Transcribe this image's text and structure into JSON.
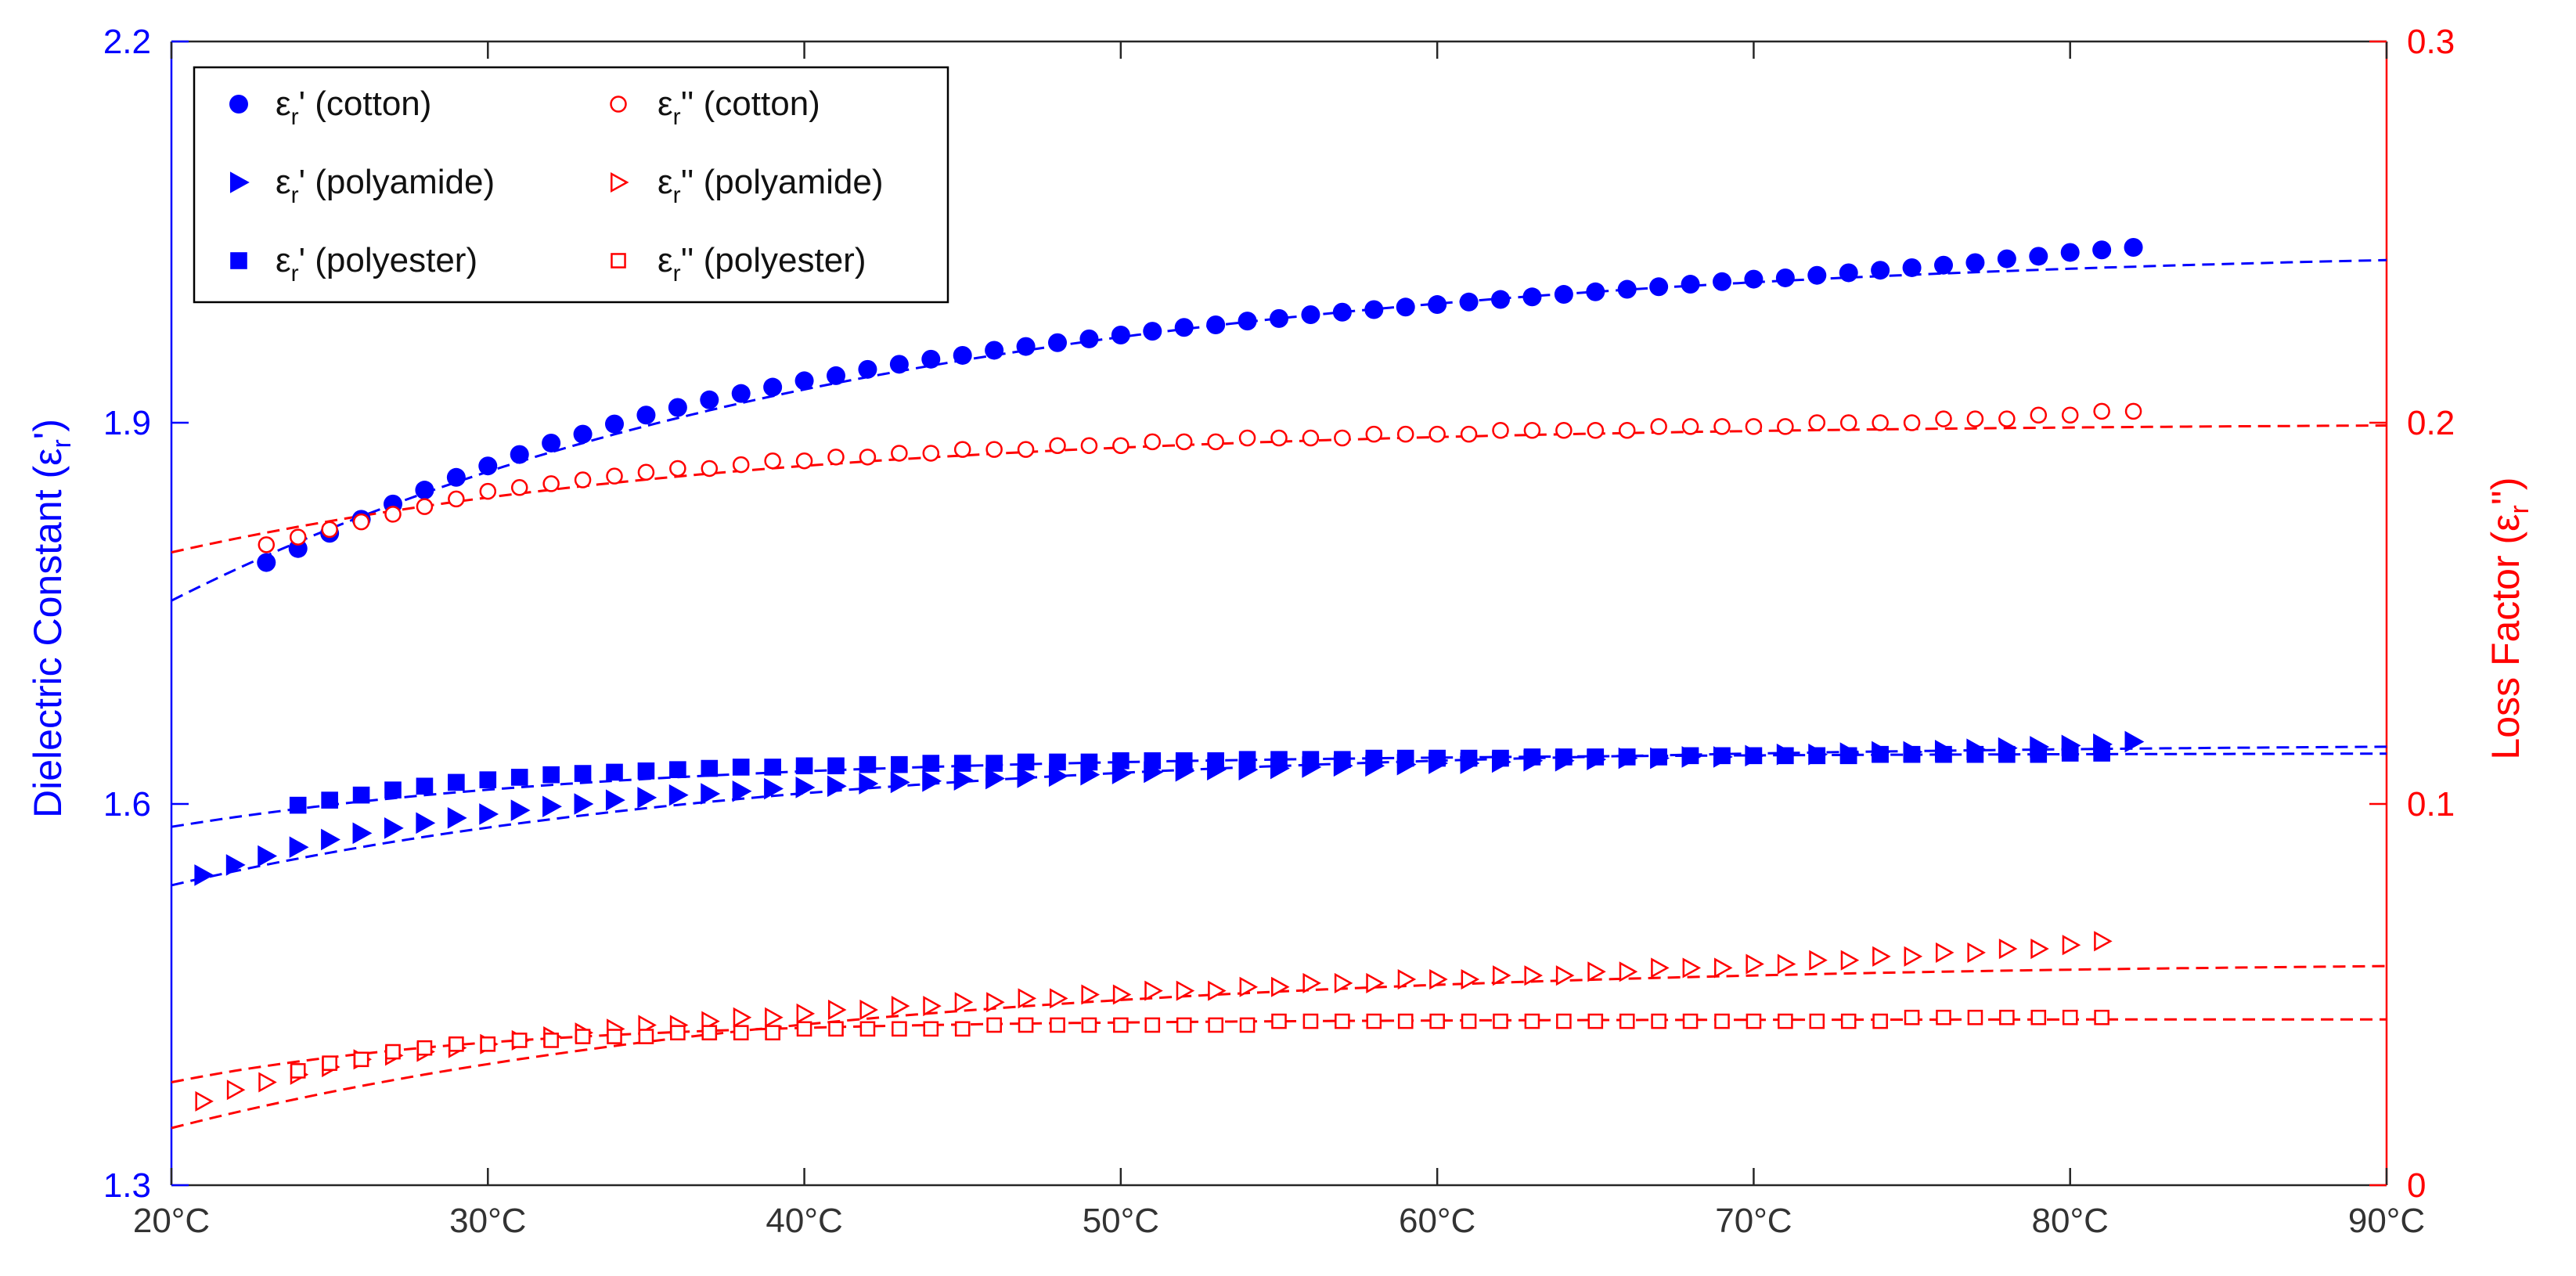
{
  "chart_data": {
    "type": "scatter",
    "title": "",
    "xlabel": "",
    "x_tick_labels": [
      "20°C",
      "30°C",
      "40°C",
      "50°C",
      "60°C",
      "70°C",
      "80°C",
      "90°C"
    ],
    "xlim": [
      20,
      90
    ],
    "left_axis": {
      "label_main": "Dielectric Constant (ε",
      "label_sub": "r",
      "label_end": "')",
      "ylim": [
        1.3,
        2.2
      ],
      "ticks": [
        "1.3",
        "1.6",
        "1.9",
        "2.2"
      ],
      "color": "#0000ff"
    },
    "right_axis": {
      "label_main": "Loss Factor (ε",
      "label_sub": "r",
      "label_end": "'')",
      "ylim": [
        0,
        0.3
      ],
      "ticks": [
        "0",
        "0.1",
        "0.2",
        "0.3"
      ],
      "color": "#ff0000"
    },
    "series": [
      {
        "name": "εr' (cotton)",
        "legend_main": "ε",
        "legend_sub": "r",
        "legend_rest": "' (cotton)",
        "axis": "left",
        "marker": "circle",
        "filled": true,
        "color": "#0000ff",
        "x": [
          23,
          24,
          25,
          26,
          27,
          28,
          29,
          30,
          31,
          32,
          33,
          34,
          35,
          36,
          37,
          38,
          39,
          40,
          41,
          42,
          43,
          44,
          45,
          46,
          47,
          48,
          49,
          50,
          51,
          52,
          53,
          54,
          55,
          56,
          57,
          58,
          59,
          60,
          61,
          62,
          63,
          64,
          65,
          66,
          67,
          68,
          69,
          70,
          71,
          72,
          73,
          74,
          75,
          76,
          77,
          78,
          79,
          80,
          81,
          82
        ],
        "values": [
          1.79,
          1.801,
          1.813,
          1.824,
          1.836,
          1.847,
          1.857,
          1.866,
          1.875,
          1.884,
          1.891,
          1.899,
          1.906,
          1.912,
          1.918,
          1.923,
          1.928,
          1.933,
          1.937,
          1.942,
          1.946,
          1.95,
          1.953,
          1.957,
          1.96,
          1.963,
          1.966,
          1.969,
          1.972,
          1.975,
          1.977,
          1.98,
          1.982,
          1.985,
          1.987,
          1.989,
          1.991,
          1.993,
          1.995,
          1.997,
          1.999,
          2.001,
          2.003,
          2.005,
          2.007,
          2.009,
          2.011,
          2.013,
          2.014,
          2.016,
          2.018,
          2.02,
          2.022,
          2.024,
          2.026,
          2.029,
          2.031,
          2.034,
          2.036,
          2.038
        ],
        "fit": {
          "a": 2.04,
          "b": 0.28,
          "k": 0.045
        }
      },
      {
        "name": "εr' (polyamide)",
        "legend_main": "ε",
        "legend_sub": "r",
        "legend_rest": "' (polyamide)",
        "axis": "left",
        "marker": "triangle-right",
        "filled": true,
        "color": "#0000ff",
        "x": [
          21,
          22,
          23,
          24,
          25,
          26,
          27,
          28,
          29,
          30,
          31,
          32,
          33,
          34,
          35,
          36,
          37,
          38,
          39,
          40,
          41,
          42,
          43,
          44,
          45,
          46,
          47,
          48,
          49,
          50,
          51,
          52,
          53,
          54,
          55,
          56,
          57,
          58,
          59,
          60,
          61,
          62,
          63,
          64,
          65,
          66,
          67,
          68,
          69,
          70,
          71,
          72,
          73,
          74,
          75,
          76,
          77,
          78,
          79,
          80,
          81,
          82
        ],
        "values": [
          1.544,
          1.552,
          1.559,
          1.566,
          1.572,
          1.577,
          1.581,
          1.585,
          1.589,
          1.592,
          1.595,
          1.598,
          1.6,
          1.603,
          1.605,
          1.607,
          1.608,
          1.61,
          1.612,
          1.613,
          1.614,
          1.616,
          1.617,
          1.618,
          1.619,
          1.62,
          1.621,
          1.622,
          1.623,
          1.624,
          1.625,
          1.626,
          1.627,
          1.627,
          1.628,
          1.629,
          1.63,
          1.63,
          1.631,
          1.632,
          1.632,
          1.633,
          1.634,
          1.634,
          1.635,
          1.636,
          1.636,
          1.637,
          1.637,
          1.638,
          1.639,
          1.639,
          1.64,
          1.641,
          1.641,
          1.642,
          1.643,
          1.644,
          1.645,
          1.646,
          1.647,
          1.649
        ],
        "fit": {
          "a": 1.648,
          "b": 0.112,
          "k": 0.052
        }
      },
      {
        "name": "εr' (polyester)",
        "legend_main": "ε",
        "legend_sub": "r",
        "legend_rest": "' (polyester)",
        "axis": "left",
        "marker": "square",
        "filled": true,
        "color": "#0000ff",
        "x": [
          24,
          25,
          26,
          27,
          28,
          29,
          30,
          31,
          32,
          33,
          34,
          35,
          36,
          37,
          38,
          39,
          40,
          41,
          42,
          43,
          44,
          45,
          46,
          47,
          48,
          49,
          50,
          51,
          52,
          53,
          54,
          55,
          56,
          57,
          58,
          59,
          60,
          61,
          62,
          63,
          64,
          65,
          66,
          67,
          68,
          69,
          70,
          71,
          72,
          73,
          74,
          75,
          76,
          77,
          78,
          79,
          80,
          81
        ],
        "values": [
          1.599,
          1.603,
          1.607,
          1.611,
          1.614,
          1.617,
          1.619,
          1.621,
          1.623,
          1.624,
          1.625,
          1.626,
          1.627,
          1.628,
          1.629,
          1.629,
          1.63,
          1.63,
          1.631,
          1.631,
          1.632,
          1.632,
          1.632,
          1.633,
          1.633,
          1.633,
          1.634,
          1.634,
          1.634,
          1.634,
          1.635,
          1.635,
          1.635,
          1.635,
          1.636,
          1.636,
          1.636,
          1.636,
          1.636,
          1.637,
          1.637,
          1.637,
          1.637,
          1.637,
          1.638,
          1.638,
          1.638,
          1.638,
          1.638,
          1.638,
          1.639,
          1.639,
          1.639,
          1.639,
          1.639,
          1.639,
          1.64,
          1.64
        ],
        "fit": {
          "a": 1.64,
          "b": 0.058,
          "k": 0.07
        }
      },
      {
        "name": "εr'' (cotton)",
        "legend_main": "ε",
        "legend_sub": "r",
        "legend_rest": "'' (cotton)",
        "axis": "right",
        "marker": "circle",
        "filled": false,
        "color": "#ff0000",
        "x": [
          23,
          24,
          25,
          26,
          27,
          28,
          29,
          30,
          31,
          32,
          33,
          34,
          35,
          36,
          37,
          38,
          39,
          40,
          41,
          42,
          43,
          44,
          45,
          46,
          47,
          48,
          49,
          50,
          51,
          52,
          53,
          54,
          55,
          56,
          57,
          58,
          59,
          60,
          61,
          62,
          63,
          64,
          65,
          66,
          67,
          68,
          69,
          70,
          71,
          72,
          73,
          74,
          75,
          76,
          77,
          78,
          79,
          80,
          81,
          82
        ],
        "values": [
          0.168,
          0.17,
          0.172,
          0.174,
          0.176,
          0.178,
          0.18,
          0.182,
          0.183,
          0.184,
          0.185,
          0.186,
          0.187,
          0.188,
          0.188,
          0.189,
          0.19,
          0.19,
          0.191,
          0.191,
          0.192,
          0.192,
          0.193,
          0.193,
          0.193,
          0.194,
          0.194,
          0.194,
          0.195,
          0.195,
          0.195,
          0.196,
          0.196,
          0.196,
          0.196,
          0.197,
          0.197,
          0.197,
          0.197,
          0.198,
          0.198,
          0.198,
          0.198,
          0.198,
          0.199,
          0.199,
          0.199,
          0.199,
          0.199,
          0.2,
          0.2,
          0.2,
          0.2,
          0.201,
          0.201,
          0.201,
          0.202,
          0.202,
          0.203,
          0.203
        ],
        "fit": {
          "a": 0.2,
          "b": 0.034,
          "k": 0.055
        }
      },
      {
        "name": "εr'' (polyamide)",
        "legend_main": "ε",
        "legend_sub": "r",
        "legend_rest": "'' (polyamide)",
        "axis": "right",
        "marker": "triangle-right",
        "filled": false,
        "color": "#ff0000",
        "x": [
          21,
          22,
          23,
          24,
          25,
          26,
          27,
          28,
          29,
          30,
          31,
          32,
          33,
          34,
          35,
          36,
          37,
          38,
          39,
          40,
          41,
          42,
          43,
          44,
          45,
          46,
          47,
          48,
          49,
          50,
          51,
          52,
          53,
          54,
          55,
          56,
          57,
          58,
          59,
          60,
          61,
          62,
          63,
          64,
          65,
          66,
          67,
          68,
          69,
          70,
          71,
          72,
          73,
          74,
          75,
          76,
          77,
          78,
          79,
          80,
          81
        ],
        "values": [
          0.022,
          0.025,
          0.027,
          0.029,
          0.031,
          0.033,
          0.034,
          0.035,
          0.036,
          0.037,
          0.038,
          0.039,
          0.04,
          0.041,
          0.042,
          0.042,
          0.043,
          0.044,
          0.044,
          0.045,
          0.046,
          0.046,
          0.047,
          0.047,
          0.048,
          0.048,
          0.049,
          0.049,
          0.05,
          0.05,
          0.051,
          0.051,
          0.051,
          0.052,
          0.052,
          0.053,
          0.053,
          0.053,
          0.054,
          0.054,
          0.054,
          0.055,
          0.055,
          0.055,
          0.056,
          0.056,
          0.057,
          0.057,
          0.057,
          0.058,
          0.058,
          0.059,
          0.059,
          0.06,
          0.06,
          0.061,
          0.061,
          0.062,
          0.062,
          0.063,
          0.064
        ],
        "fit": {
          "a": 0.059,
          "b": 0.044,
          "k": 0.048
        }
      },
      {
        "name": "εr'' (polyester)",
        "legend_main": "ε",
        "legend_sub": "r",
        "legend_rest": "'' (polyester)",
        "axis": "right",
        "marker": "square",
        "filled": false,
        "color": "#ff0000",
        "x": [
          24,
          25,
          26,
          27,
          28,
          29,
          30,
          31,
          32,
          33,
          34,
          35,
          36,
          37,
          38,
          39,
          40,
          41,
          42,
          43,
          44,
          45,
          46,
          47,
          48,
          49,
          50,
          51,
          52,
          53,
          54,
          55,
          56,
          57,
          58,
          59,
          60,
          61,
          62,
          63,
          64,
          65,
          66,
          67,
          68,
          69,
          70,
          71,
          72,
          73,
          74,
          75,
          76,
          77,
          78,
          79,
          80,
          81
        ],
        "values": [
          0.03,
          0.032,
          0.033,
          0.035,
          0.036,
          0.037,
          0.037,
          0.038,
          0.038,
          0.039,
          0.039,
          0.039,
          0.04,
          0.04,
          0.04,
          0.04,
          0.041,
          0.041,
          0.041,
          0.041,
          0.041,
          0.041,
          0.042,
          0.042,
          0.042,
          0.042,
          0.042,
          0.042,
          0.042,
          0.042,
          0.042,
          0.043,
          0.043,
          0.043,
          0.043,
          0.043,
          0.043,
          0.043,
          0.043,
          0.043,
          0.043,
          0.043,
          0.043,
          0.043,
          0.043,
          0.043,
          0.043,
          0.043,
          0.043,
          0.043,
          0.043,
          0.044,
          0.044,
          0.044,
          0.044,
          0.044,
          0.044,
          0.044
        ],
        "fit": {
          "a": 0.0435,
          "b": 0.0165,
          "k": 0.1
        }
      }
    ],
    "legend": {
      "placement": "top-left",
      "columns": 2
    }
  }
}
